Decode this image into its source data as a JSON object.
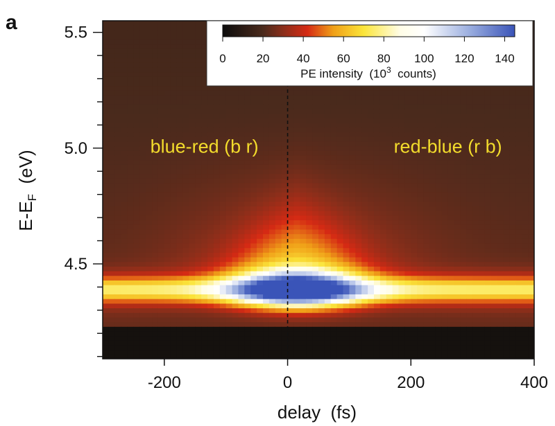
{
  "panel_label": "a",
  "chart_data": {
    "type": "heatmap",
    "xlabel": "delay  (fs)",
    "ylabel_main": "E-E",
    "ylabel_sub": "F",
    "ylabel_unit": "  (eV)",
    "xlim": [
      -300,
      400
    ],
    "ylim": [
      4.09,
      5.55
    ],
    "xticks": [
      -200,
      0,
      200,
      400
    ],
    "xtick_labels": [
      "-200",
      "0",
      "200",
      "400"
    ],
    "yticks": [
      4.5,
      5.0,
      5.5
    ],
    "ytick_labels": [
      "4.5",
      "5.0",
      "5.5"
    ],
    "y_minor_step": 0.1,
    "reference_line": {
      "x": 0,
      "style": "dashed"
    },
    "annotations": [
      {
        "text": "blue-red (b r)",
        "x": -135,
        "y": 4.98,
        "color": "#f3dc2c"
      },
      {
        "text": "red-blue (r b)",
        "x": 260,
        "y": 4.98,
        "color": "#f3dc2c"
      }
    ],
    "colorbar": {
      "range": [
        0,
        145
      ],
      "ticks": [
        0,
        20,
        40,
        60,
        80,
        100,
        120,
        140
      ],
      "tick_labels": [
        "0",
        "20",
        "40",
        "60",
        "80",
        "100",
        "120",
        "140"
      ],
      "label_main": "PE intensity  (10",
      "label_sup": "3",
      "label_tail": "  counts)",
      "colormap_stops": [
        [
          0,
          "#0c0c0c"
        ],
        [
          20,
          "#4a2a1c"
        ],
        [
          30,
          "#8a2e1a"
        ],
        [
          42,
          "#d52a14"
        ],
        [
          55,
          "#f0a018"
        ],
        [
          70,
          "#fbe53a"
        ],
        [
          88,
          "#fffde6"
        ],
        [
          100,
          "#ffffff"
        ],
        [
          122,
          "#9db0e0"
        ],
        [
          145,
          "#3a54b8"
        ]
      ]
    },
    "intensity_model": {
      "background_low": 24,
      "background_high": 18,
      "cutoff_energy": 4.24,
      "band_energy": 4.39,
      "band_width": 0.035,
      "band_amplitude": 38,
      "peak_delay": 15,
      "peak_delay_width": 70,
      "peak_amplitude": 95,
      "dome_delay_width": 75,
      "dome_amplitude": 32,
      "halo_delay_width": 140,
      "halo_amplitude": 14
    }
  }
}
